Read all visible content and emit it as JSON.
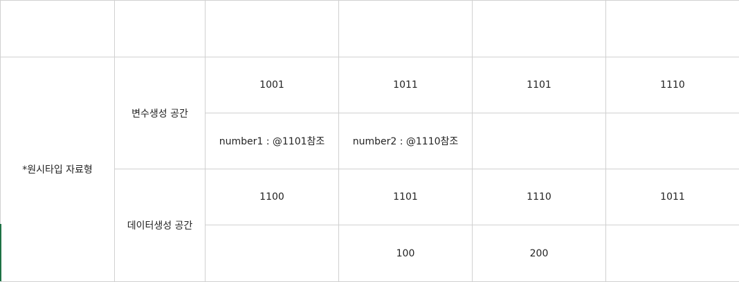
{
  "table": {
    "header": [
      "",
      "",
      "",
      "",
      "",
      ""
    ],
    "primitive_label": "*원시타입 자료형",
    "variable_space": {
      "label": "변수생성 공간",
      "addresses": [
        "1001",
        "1011",
        "1101",
        "1110"
      ],
      "values": [
        "number1 : @1101참조",
        "number2 : @1110참조",
        "",
        ""
      ]
    },
    "data_space": {
      "label": "데이터생성 공간",
      "addresses": [
        "1100",
        "1101",
        "1110",
        "1011"
      ],
      "values": [
        "",
        "100",
        "200",
        ""
      ]
    }
  },
  "colors": {
    "grid": "#d0d0d0",
    "accent": "#1e7145"
  }
}
